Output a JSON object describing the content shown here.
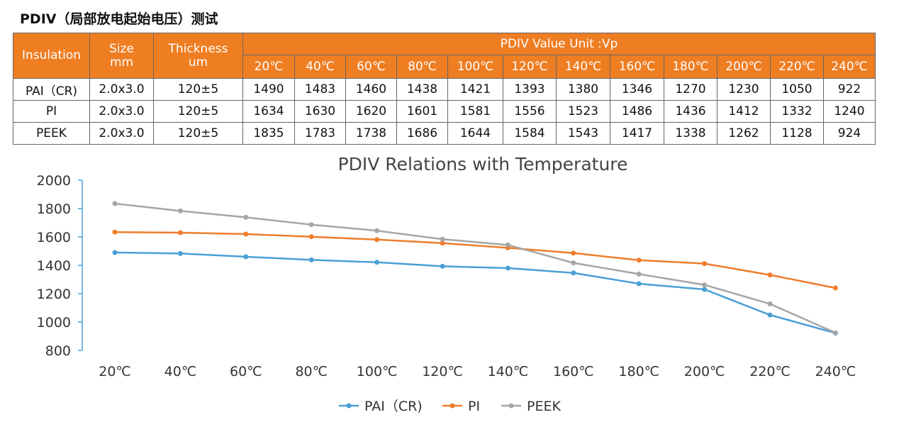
{
  "title": "PDIV（局部放电起始电压）测试",
  "table": {
    "headers": {
      "insulation": "Insulation",
      "size": "Size",
      "size_unit": "mm",
      "thickness": "Thickness",
      "thickness_unit": "um",
      "pdiv_group": "PDIV Value Unit :Vp"
    },
    "temperatures": [
      "20℃",
      "40℃",
      "60℃",
      "80℃",
      "100℃",
      "120℃",
      "140℃",
      "160℃",
      "180℃",
      "200℃",
      "220℃",
      "240℃"
    ],
    "rows": [
      {
        "insulation": "PAI（CR)",
        "size": "2.0x3.0",
        "thickness": "120±5",
        "values": [
          "1490",
          "1483",
          "1460",
          "1438",
          "1421",
          "1393",
          "1380",
          "1346",
          "1270",
          "1230",
          "1050",
          "922"
        ]
      },
      {
        "insulation": "PI",
        "size": "2.0x3.0",
        "thickness": "120±5",
        "values": [
          "1634",
          "1630",
          "1620",
          "1601",
          "1581",
          "1556",
          "1523",
          "1486",
          "1436",
          "1412",
          "1332",
          "1240"
        ]
      },
      {
        "insulation": "PEEK",
        "size": "2.0x3.0",
        "thickness": "120±5",
        "values": [
          "1835",
          "1783",
          "1738",
          "1686",
          "1644",
          "1584",
          "1543",
          "1417",
          "1338",
          "1262",
          "1128",
          "924"
        ]
      }
    ],
    "header_color": "#ef7d22"
  },
  "chart_data": {
    "type": "line",
    "title": "PDIV Relations with Temperature",
    "categories": [
      "20℃",
      "40℃",
      "60℃",
      "80℃",
      "100℃",
      "120℃",
      "140℃",
      "160℃",
      "180℃",
      "200℃",
      "220℃",
      "240℃"
    ],
    "series": [
      {
        "name": "PAI（CR)",
        "color": "#4a9fd6",
        "values": [
          1490,
          1483,
          1460,
          1438,
          1421,
          1393,
          1380,
          1346,
          1270,
          1230,
          1050,
          922
        ]
      },
      {
        "name": "PI",
        "color": "#ee7d2c",
        "values": [
          1634,
          1630,
          1620,
          1601,
          1581,
          1556,
          1523,
          1486,
          1436,
          1412,
          1332,
          1240
        ]
      },
      {
        "name": "PEEK",
        "color": "#a6a6a6",
        "values": [
          1835,
          1783,
          1738,
          1686,
          1644,
          1584,
          1543,
          1417,
          1338,
          1262,
          1128,
          924
        ]
      }
    ],
    "ylim": [
      800,
      2000
    ],
    "yticks": [
      "800",
      "1000",
      "1200",
      "1400",
      "1600",
      "1800",
      "2000"
    ],
    "grid": false,
    "legend": "bottom",
    "axis_color": "#4a9fd6"
  }
}
